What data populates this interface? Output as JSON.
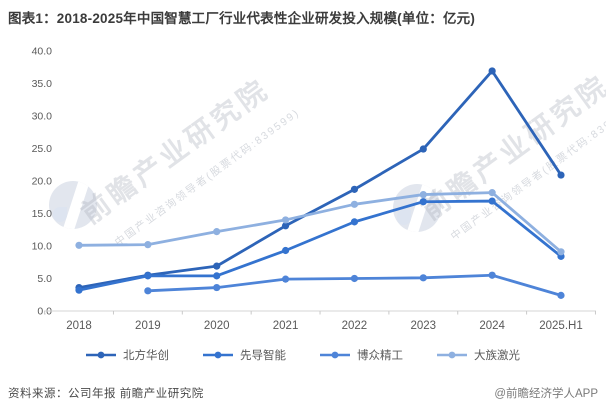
{
  "title": "图表1：2018-2025年中国智慧工厂行业代表性企业研发投入规模(单位：亿元)",
  "chart_data": {
    "type": "line",
    "categories": [
      "2018",
      "2019",
      "2020",
      "2021",
      "2022",
      "2023",
      "2024",
      "2025.H1"
    ],
    "series": [
      {
        "name": "北方华创",
        "color": "#2d64b8",
        "values": [
          3.6,
          5.5,
          6.9,
          13.1,
          18.7,
          24.9,
          36.9,
          20.9
        ]
      },
      {
        "name": "先导智能",
        "color": "#3473cf",
        "values": [
          3.2,
          5.4,
          5.4,
          9.3,
          13.7,
          16.8,
          16.9,
          8.4
        ]
      },
      {
        "name": "博众精工",
        "color": "#4e84d8",
        "values": [
          null,
          3.1,
          3.6,
          4.9,
          5.0,
          5.1,
          5.5,
          2.4
        ]
      },
      {
        "name": "大族激光",
        "color": "#8eb0e0",
        "values": [
          10.1,
          10.2,
          12.2,
          14.0,
          16.4,
          17.9,
          18.2,
          9.1
        ]
      }
    ],
    "title": "图表1：2018-2025年中国智慧工厂行业代表性企业研发投入规模(单位：亿元)",
    "xlabel": "",
    "ylabel": "",
    "ylim": [
      0,
      40
    ],
    "ytick_step": 5,
    "ytick_labels": [
      "0.0",
      "5.0",
      "10.0",
      "15.0",
      "20.0",
      "25.0",
      "30.0",
      "35.0",
      "40.0"
    ],
    "grid": false,
    "legend_position": "bottom"
  },
  "watermark": {
    "text": "前瞻产业研究院",
    "subtext": "中国产业咨询领导者(股票代码:839599)"
  },
  "footer": {
    "source": "资料来源：公司年报 前瞻产业研究院",
    "brand": "@前瞻经济学人APP"
  }
}
